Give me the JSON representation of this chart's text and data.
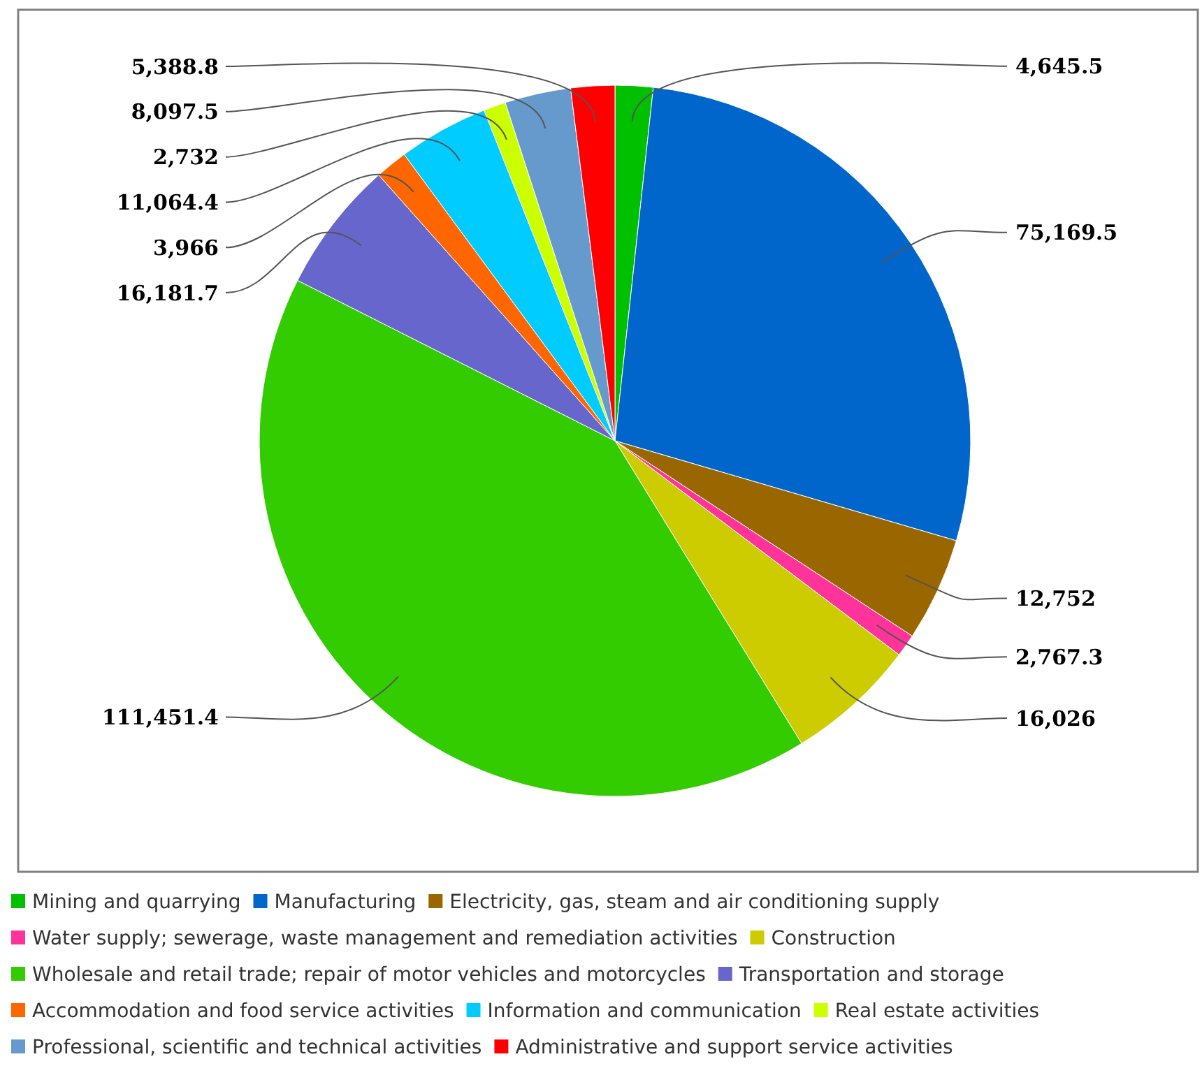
{
  "chart_data": {
    "type": "pie",
    "categories": [
      "Mining and quarrying",
      "Manufacturing",
      "Electricity, gas, steam and air conditioning supply",
      "Water supply; sewerage, waste management and remediation activities",
      "Construction",
      "Wholesale and retail trade; repair of motor vehicles and motorcycles",
      "Transportation and storage",
      "Accommodation and food service activities",
      "Information and communication",
      "Real estate activities",
      "Professional, scientific and technical activities",
      "Administrative and support service activities"
    ],
    "values": [
      4645.5,
      75169.5,
      12752,
      2767.3,
      16026,
      111451.4,
      16181.7,
      3966,
      11064.4,
      2732,
      8097.5,
      5388.8
    ],
    "value_labels": [
      "4,645.5",
      "75,169.5",
      "12,752",
      "2,767.3",
      "16,026",
      "111,451.4",
      "16,181.7",
      "3,966",
      "11,064.4",
      "2,732",
      "8,097.5",
      "5,388.8"
    ],
    "colors": [
      "#00c000",
      "#0066cc",
      "#996600",
      "#ff3399",
      "#cccc00",
      "#33cc00",
      "#6666cc",
      "#ff6600",
      "#00ccff",
      "#ccff00",
      "#6699cc",
      "#ff0000"
    ],
    "legend": "bottom"
  }
}
